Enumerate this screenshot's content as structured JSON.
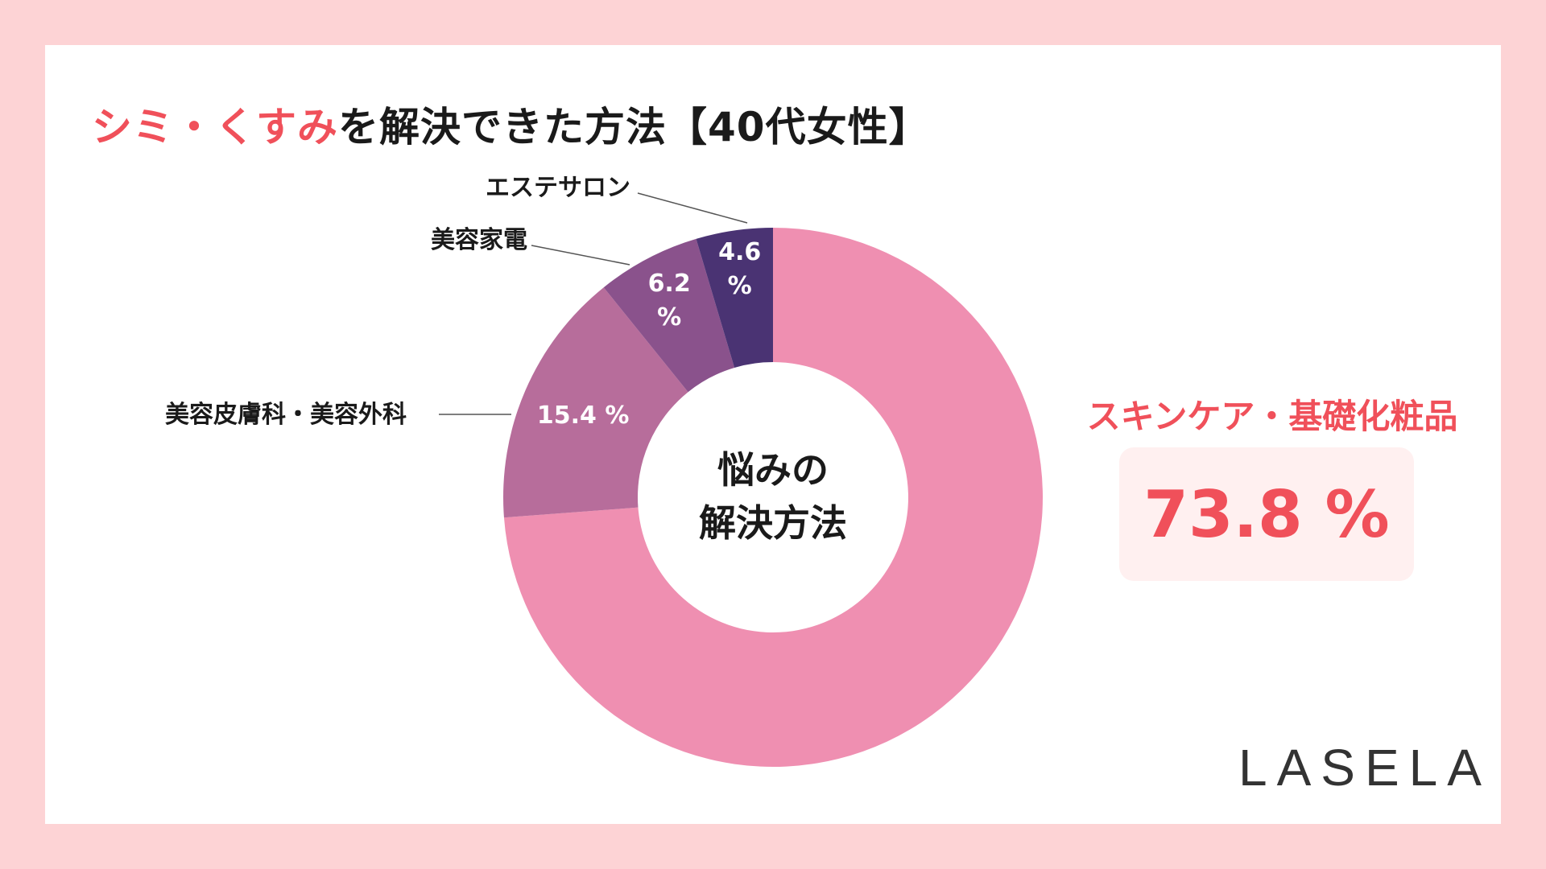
{
  "title": {
    "accent": "シミ・くすみ",
    "rest": "を解決できた方法【40代女性】"
  },
  "colors": {
    "background": "#fdd3d5",
    "accent": "#f0505a",
    "value_box": "#fff0f0"
  },
  "chart_data": {
    "type": "pie",
    "title": "シミ・くすみを解決できた方法【40代女性】",
    "center_label": [
      "悩みの",
      "解決方法"
    ],
    "slices": [
      {
        "label": "スキンケア・基礎化粧品",
        "value": 73.8,
        "display": "73.8 %",
        "color": "#ef8fb1"
      },
      {
        "label": "美容皮膚科・美容外科",
        "value": 15.4,
        "display": "15.4 %",
        "color": "#b76d9b"
      },
      {
        "label": "美容家電",
        "value": 6.2,
        "display": "6.2\n%",
        "color": "#8a528c"
      },
      {
        "label": "エステサロン",
        "value": 4.6,
        "display": "4.6\n%",
        "color": "#4a3373"
      }
    ]
  },
  "highlight": {
    "label": "スキンケア・基礎化粧品",
    "value": "73.8 %"
  },
  "logo": "LASELA"
}
